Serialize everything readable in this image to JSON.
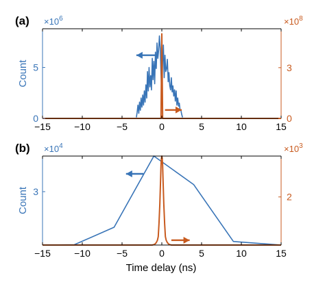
{
  "colors": {
    "blue": "#3874b7",
    "orange": "#c85a1e",
    "black": "#000000"
  },
  "x_axis_label": "Time delay (ns)",
  "chart_data": [
    {
      "type": "line",
      "panel_label": "(a)",
      "xlabel": "",
      "xlim": [
        -15,
        15
      ],
      "xticks": [
        -15,
        -10,
        -5,
        0,
        5,
        10,
        15
      ],
      "xtick_labels": [
        "−15",
        "−10",
        "−5",
        "0",
        "5",
        "10",
        "15"
      ],
      "left_axis": {
        "ylabel": "Count",
        "ylim": [
          0,
          8.8
        ],
        "ticks": [
          0,
          5
        ],
        "tick_labels": [
          "0",
          "5"
        ],
        "exponent_base": "×10",
        "exponent_power": "6"
      },
      "right_axis": {
        "ylabel": "",
        "ylim": [
          0,
          5.3
        ],
        "ticks": [
          0,
          3
        ],
        "tick_labels": [
          "0",
          "3"
        ],
        "exponent_base": "×10",
        "exponent_power": "8"
      },
      "series": [
        {
          "axis": "left",
          "color": "blue",
          "x": [
            -3.2,
            -3.1,
            -3.0,
            -2.9,
            -2.8,
            -2.7,
            -2.6,
            -2.5,
            -2.4,
            -2.3,
            -2.2,
            -2.1,
            -2.0,
            -1.9,
            -1.8,
            -1.7,
            -1.6,
            -1.5,
            -1.4,
            -1.3,
            -1.2,
            -1.1,
            -1.0,
            -0.9,
            -0.8,
            -0.7,
            -0.6,
            -0.5,
            -0.4,
            -0.3,
            -0.2,
            -0.1,
            0.0,
            0.1,
            0.2,
            0.3,
            0.4,
            0.5,
            0.6,
            0.7,
            0.8,
            0.9,
            1.0,
            1.1,
            1.2,
            1.3,
            1.4,
            1.5,
            1.6,
            1.7,
            1.8,
            1.9,
            2.0,
            2.1,
            2.2,
            2.3,
            2.4,
            2.5,
            2.6
          ],
          "values": [
            0.1,
            0.6,
            1.3,
            0.5,
            1.6,
            0.8,
            2.0,
            1.1,
            2.3,
            1.3,
            2.7,
            1.6,
            3.3,
            2.0,
            4.6,
            2.7,
            5.0,
            3.1,
            4.2,
            2.8,
            5.9,
            3.8,
            5.6,
            3.4,
            6.5,
            4.9,
            7.4,
            5.9,
            6.7,
            8.1,
            6.9,
            4.4,
            2.2,
            5.6,
            7.2,
            4.0,
            6.2,
            4.6,
            4.9,
            5.8,
            3.6,
            4.5,
            3.2,
            2.8,
            4.0,
            2.6,
            3.2,
            2.2,
            2.8,
            1.7,
            2.7,
            1.3,
            2.0,
            1.2,
            1.5,
            0.8,
            0.8,
            0.4,
            0.1
          ]
        },
        {
          "axis": "right",
          "color": "orange",
          "x": [
            -15,
            -0.1,
            -0.05,
            0,
            0.05,
            0.1,
            15
          ],
          "values": [
            0,
            0,
            2.5,
            5.0,
            2.5,
            0,
            0
          ]
        }
      ],
      "annotations": [
        {
          "type": "arrow",
          "direction": "left",
          "color": "blue",
          "x_from": -0.8,
          "x_to": -3.2,
          "y": 6.2,
          "axis": "left"
        },
        {
          "type": "arrow",
          "direction": "right",
          "color": "orange",
          "x_from": 0.4,
          "x_to": 2.5,
          "y": 0.5,
          "axis": "right"
        }
      ]
    },
    {
      "type": "line",
      "panel_label": "(b)",
      "xlabel": "Time delay (ns)",
      "xlim": [
        -15,
        15
      ],
      "xticks": [
        -15,
        -10,
        -5,
        0,
        5,
        10,
        15
      ],
      "xtick_labels": [
        "−15",
        "−10",
        "−5",
        "0",
        "5",
        "10",
        "15"
      ],
      "left_axis": {
        "ylabel": "Count",
        "ylim": [
          0,
          5.0
        ],
        "ticks": [
          3
        ],
        "tick_labels": [
          "3"
        ],
        "exponent_base": "×10",
        "exponent_power": "4"
      },
      "right_axis": {
        "ylabel": "",
        "ylim": [
          0,
          3.7
        ],
        "ticks": [
          2
        ],
        "tick_labels": [
          "2"
        ],
        "exponent_base": "×10",
        "exponent_power": "3"
      },
      "series": [
        {
          "axis": "left",
          "color": "blue",
          "x": [
            -15,
            -11,
            -6,
            -1,
            4,
            9,
            15
          ],
          "values": [
            0,
            0.02,
            1.0,
            5.0,
            3.4,
            0.2,
            0
          ]
        },
        {
          "axis": "right",
          "color": "orange",
          "x": [
            -15,
            -1.2,
            -0.9,
            -0.7,
            -0.55,
            -0.45,
            -0.35,
            -0.25,
            -0.15,
            -0.1,
            -0.05,
            0,
            0.05,
            0.1,
            0.15,
            0.25,
            0.35,
            0.45,
            0.55,
            0.7,
            0.9,
            1.2,
            15
          ],
          "values": [
            0,
            0,
            0.03,
            0.1,
            0.2,
            0.35,
            0.9,
            1.7,
            2.8,
            3.3,
            3.6,
            3.7,
            3.6,
            3.3,
            2.8,
            1.7,
            0.9,
            0.35,
            0.2,
            0.1,
            0.03,
            0,
            0
          ]
        }
      ],
      "annotations": [
        {
          "type": "arrow",
          "direction": "left",
          "color": "blue",
          "x_from": -2.3,
          "x_to": -4.5,
          "y": 4.0,
          "axis": "left"
        },
        {
          "type": "arrow",
          "direction": "right",
          "color": "orange",
          "x_from": 1.2,
          "x_to": 3.5,
          "y": 0.2,
          "axis": "right"
        }
      ]
    }
  ]
}
